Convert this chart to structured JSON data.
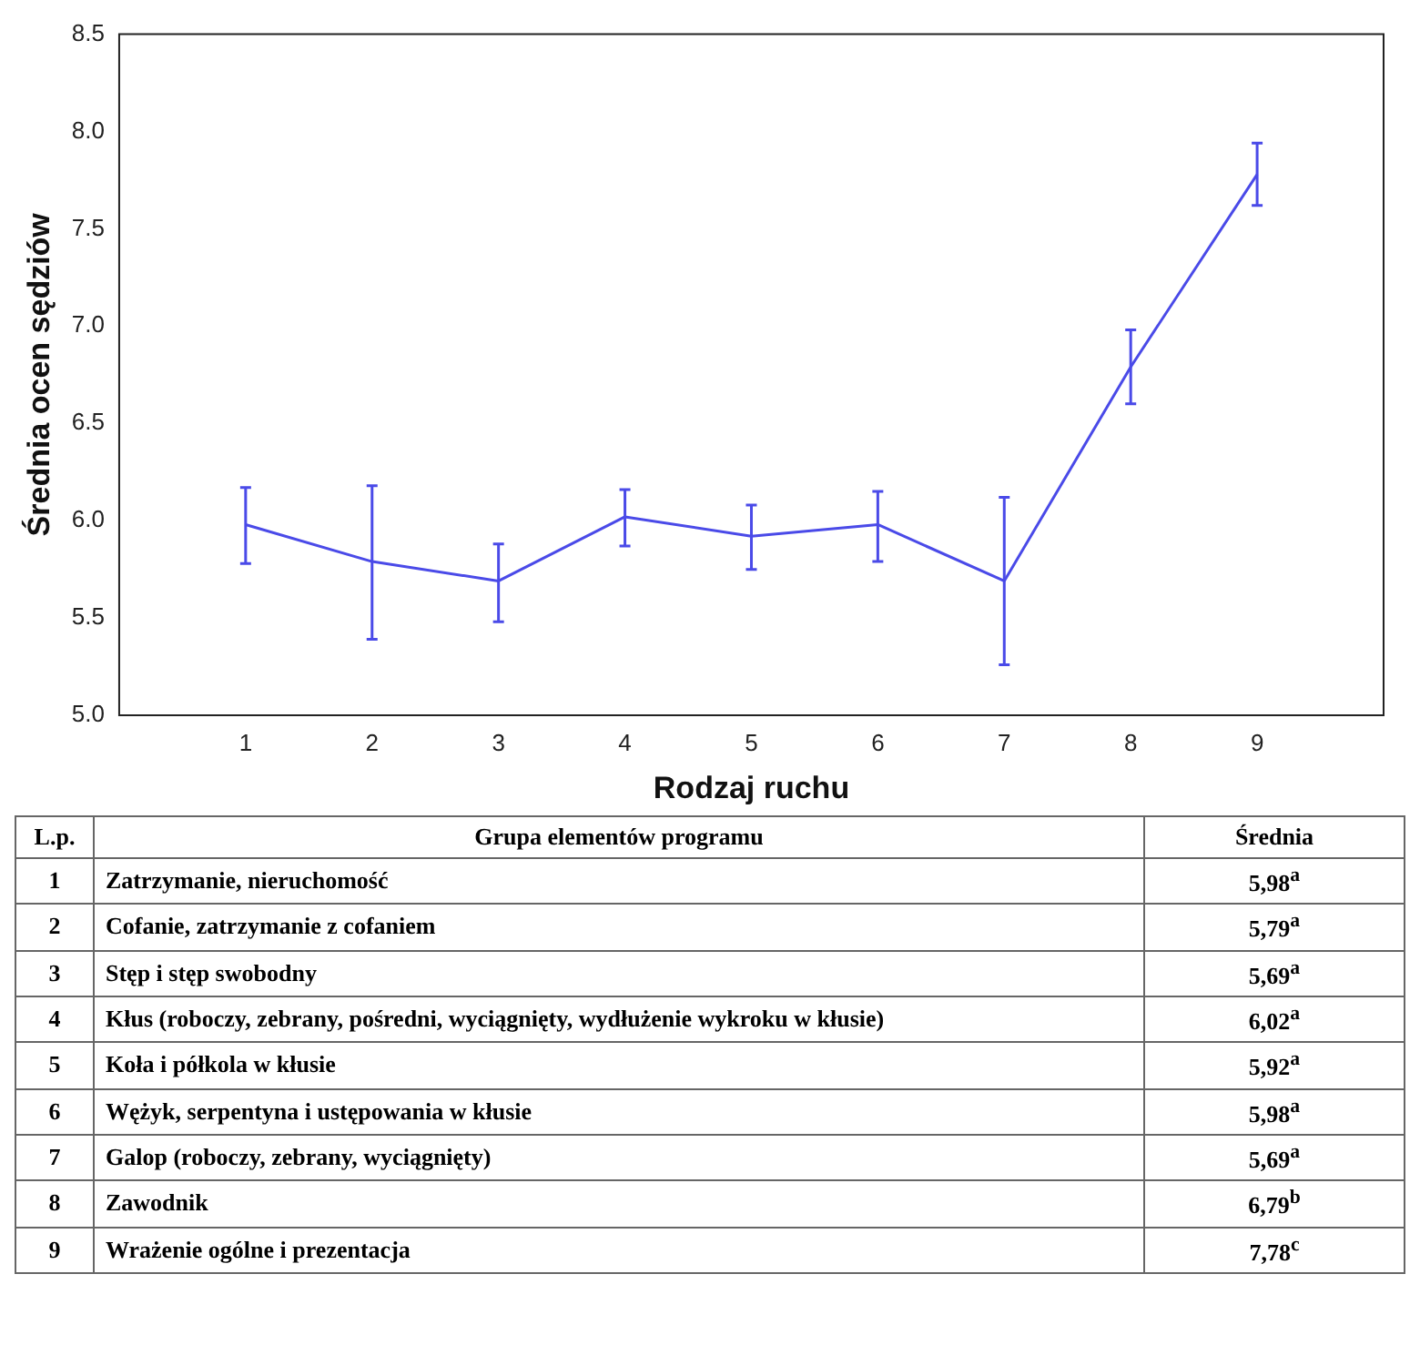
{
  "chart_data": {
    "type": "line",
    "xlabel": "Rodzaj ruchu",
    "ylabel": "Średnia ocen sędziów",
    "x": [
      1,
      2,
      3,
      4,
      5,
      6,
      7,
      8,
      9
    ],
    "series": [
      {
        "color": "#4a4ae8",
        "values": [
          5.98,
          5.79,
          5.69,
          6.02,
          5.92,
          5.98,
          5.69,
          6.79,
          7.78
        ],
        "errors": [
          [
            5.78,
            6.17
          ],
          [
            5.39,
            6.18
          ],
          [
            5.48,
            5.88
          ],
          [
            5.87,
            6.16
          ],
          [
            5.75,
            6.08
          ],
          [
            5.79,
            6.15
          ],
          [
            5.26,
            6.12
          ],
          [
            6.6,
            6.98
          ],
          [
            7.62,
            7.94
          ]
        ]
      }
    ],
    "xlim": [
      0,
      10
    ],
    "xticks": [
      1,
      2,
      3,
      4,
      5,
      6,
      7,
      8,
      9
    ],
    "ylim": [
      5.0,
      8.5
    ],
    "yticks": [
      {
        "value": 5.0,
        "label": "5.0"
      },
      {
        "value": 5.5,
        "label": "5.5"
      },
      {
        "value": 6.0,
        "label": "6.0"
      },
      {
        "value": 6.5,
        "label": "6.5"
      },
      {
        "value": 7.0,
        "label": "7.0"
      },
      {
        "value": 7.5,
        "label": "7.5"
      },
      {
        "value": 8.0,
        "label": "8.0"
      },
      {
        "value": 8.5,
        "label": "8.5"
      }
    ],
    "grid": false,
    "legend": false,
    "marker": "none",
    "line_style": "solid",
    "annotations": [
      "L.p.",
      "Grupa elementów programu",
      "Średnia",
      "1",
      "Zatrzymanie, nieruchomość",
      "5,98$^{a}$",
      "2",
      "Cofanie, zatrzymanie z cofaniem",
      "5,79$^{a}$",
      "3",
      "Stęp i stęp swobodny",
      "5,69$^{a}$",
      "4",
      "Kłus (roboczy, zebrany, pośredni, wyciągnięty, wydłużenie wykroku w kłusie)",
      "6,02$^{a}$",
      "5",
      "Koła i półkola w kłusie",
      "5,92$^{a}$",
      "6",
      "Wężyk, serpentyna i ustępowania w kłusie",
      "5,98$^{a}$",
      "7",
      "Galop (roboczy, zebrany, wyciągnięty)",
      "5,69$^{a}$",
      "8",
      "Zawodnik",
      "6,79$^{b}$",
      "9",
      "Wrażenie ogólne i prezentacja",
      "7,78$^{c}$"
    ]
  }
}
